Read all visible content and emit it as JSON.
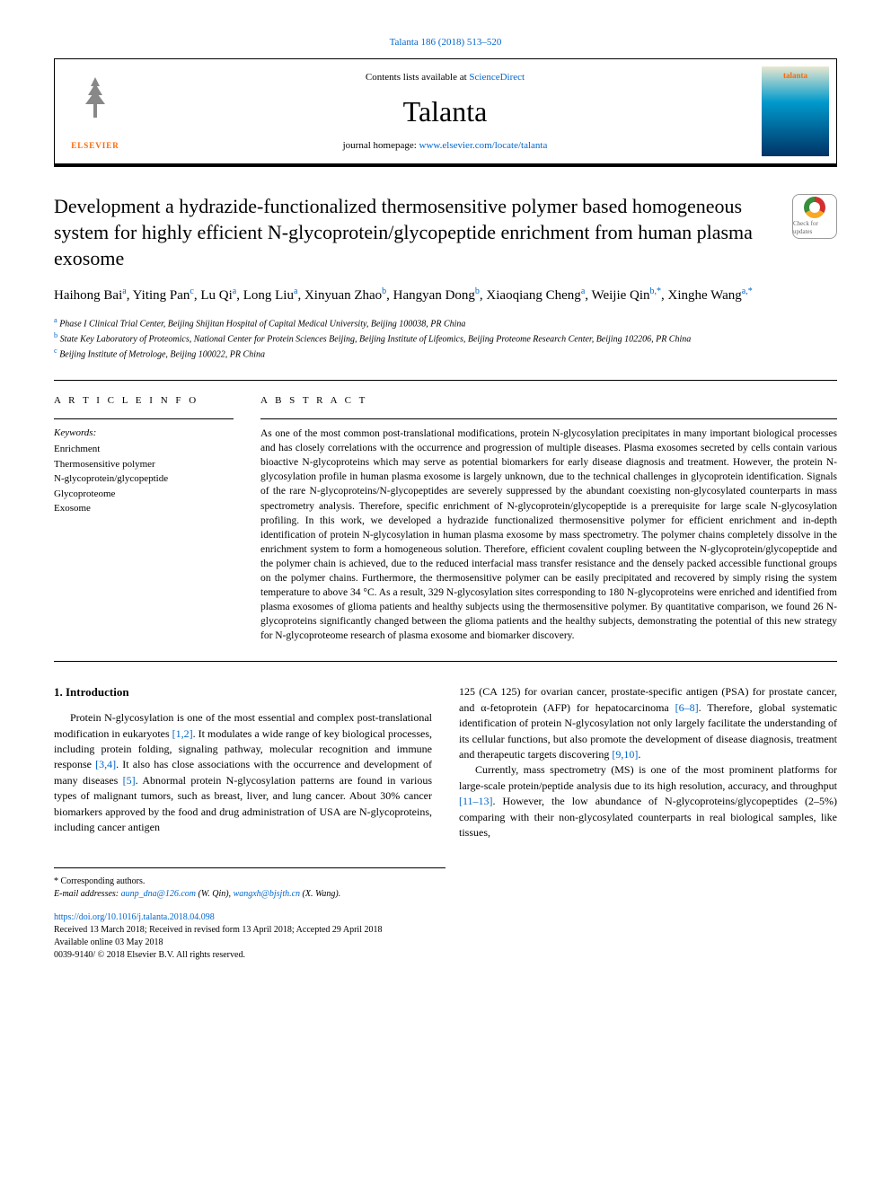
{
  "journal_ref": "Talanta 186 (2018) 513–520",
  "header": {
    "contents_prefix": "Contents lists available at ",
    "contents_link": "ScienceDirect",
    "journal_name": "Talanta",
    "homepage_prefix": "journal homepage: ",
    "homepage_link": "www.elsevier.com/locate/talanta",
    "elsevier_label": "ELSEVIER",
    "cover_label": "talanta"
  },
  "check_updates": "Check for updates",
  "title": "Development a hydrazide-functionalized thermosensitive polymer based homogeneous system for highly efficient N-glycoprotein/glycopeptide enrichment from human plasma exosome",
  "authors_html": "Haihong Bai<sup>a</sup>, Yiting Pan<sup>c</sup>, Lu Qi<sup>a</sup>, Long Liu<sup>a</sup>, Xinyuan Zhao<sup>b</sup>, Hangyan Dong<sup>b</sup>, Xiaoqiang Cheng<sup>a</sup>, Weijie Qin<sup>b,*</sup>, Xinghe Wang<sup>a,*</sup>",
  "affiliations": {
    "a": "Phase I Clinical Trial Center, Beijing Shijitan Hospital of Capital Medical University, Beijing 100038, PR China",
    "b": "State Key Laboratory of Proteomics, National Center for Protein Sciences Beijing, Beijing Institute of Lifeomics, Beijing Proteome Research Center, Beijing 102206, PR China",
    "c": "Beijing Institute of Metrologe, Beijing 100022, PR China"
  },
  "article_info_heading": "A R T I C L E  I N F O",
  "keywords_label": "Keywords:",
  "keywords": [
    "Enrichment",
    "Thermosensitive polymer",
    "N-glycoprotein/glycopeptide",
    "Glycoproteome",
    "Exosome"
  ],
  "abstract_heading": "A B S T R A C T",
  "abstract": "As one of the most common post-translational modifications, protein N-glycosylation precipitates in many important biological processes and has closely correlations with the occurrence and progression of multiple diseases. Plasma exosomes secreted by cells contain various bioactive N-glycoproteins which may serve as potential biomarkers for early disease diagnosis and treatment. However, the protein N-glycosylation profile in human plasma exosome is largely unknown, due to the technical challenges in glycoprotein identification. Signals of the rare N-glycoproteins/N-glycopeptides are severely suppressed by the abundant coexisting non-glycosylated counterparts in mass spectrometry analysis. Therefore, specific enrichment of N-glycoprotein/glycopeptide is a prerequisite for large scale N-glycosylation profiling. In this work, we developed a hydrazide functionalized thermosensitive polymer for efficient enrichment and in-depth identification of protein N-glycosylation in human plasma exosome by mass spectrometry. The polymer chains completely dissolve in the enrichment system to form a homogeneous solution. Therefore, efficient covalent coupling between the N-glycoprotein/glycopeptide and the polymer chain is achieved, due to the reduced interfacial mass transfer resistance and the densely packed accessible functional groups on the polymer chains. Furthermore, the thermosensitive polymer can be easily precipitated and recovered by simply rising the system temperature to above 34 °C. As a result, 329 N-glycosylation sites corresponding to 180 N-glycoproteins were enriched and identified from plasma exosomes of glioma patients and healthy subjects using the thermosensitive polymer. By quantitative comparison, we found 26 N-glycoproteins significantly changed between the glioma patients and the healthy subjects, demonstrating the potential of this new strategy for N-glycoproteome research of plasma exosome and biomarker discovery.",
  "intro_heading": "1. Introduction",
  "intro_col1": "Protein N-glycosylation is one of the most essential and complex post-translational modification in eukaryotes [1,2]. It modulates a wide range of key biological processes, including protein folding, signaling pathway, molecular recognition and immune response [3,4]. It also has close associations with the occurrence and development of many diseases [5]. Abnormal protein N-glycosylation patterns are found in various types of malignant tumors, such as breast, liver, and lung cancer. About 30% cancer biomarkers approved by the food and drug administration of USA are N-glycoproteins, including cancer antigen",
  "intro_col2_p1": "125 (CA 125) for ovarian cancer, prostate-specific antigen (PSA) for prostate cancer, and α-fetoprotein (AFP) for hepatocarcinoma [6–8]. Therefore, global systematic identification of protein N-glycosylation not only largely facilitate the understanding of its cellular functions, but also promote the development of disease diagnosis, treatment and therapeutic targets discovering [9,10].",
  "intro_col2_p2": "Currently, mass spectrometry (MS) is one of the most prominent platforms for large-scale protein/peptide analysis due to its high resolution, accuracy, and throughput [11–13]. However, the low abundance of N-glycoproteins/glycopeptides (2–5%) comparing with their non-glycosylated counterparts in real biological samples, like tissues,",
  "ref_links": {
    "r12": "[1,2]",
    "r34": "[3,4]",
    "r5": "[5]",
    "r68": "[6–8]",
    "r910": "[9,10]",
    "r1113": "[11–13]"
  },
  "footnotes": {
    "corresp": "* Corresponding authors.",
    "email_label": "E-mail addresses: ",
    "email1": "aunp_dna@126.com",
    "email1_name": " (W. Qin), ",
    "email2": "wangxh@bjsjth.cn",
    "email2_name": " (X. Wang)."
  },
  "pub": {
    "doi": "https://doi.org/10.1016/j.talanta.2018.04.098",
    "received": "Received 13 March 2018; Received in revised form 13 April 2018; Accepted 29 April 2018",
    "available": "Available online 03 May 2018",
    "copyright": "0039-9140/ © 2018 Elsevier B.V. All rights reserved."
  },
  "colors": {
    "link": "#0066cc",
    "elsevier_orange": "#ff6600",
    "text": "#000000",
    "background": "#ffffff"
  }
}
